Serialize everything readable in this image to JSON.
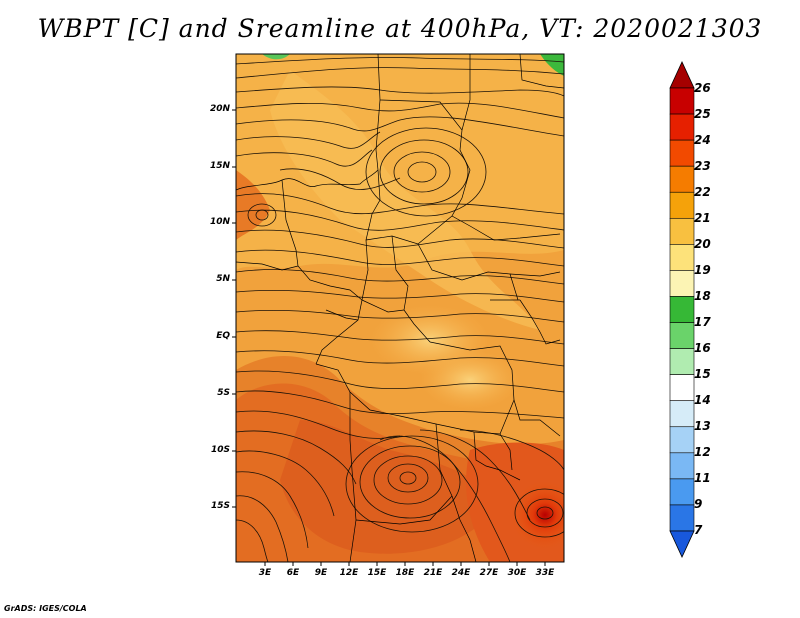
{
  "title": "WBPT [C] and Sreamline at 400hPa, VT: 2020021303",
  "credit": "GrADS: IGES/COLA",
  "map": {
    "latitude_labels": [
      "20N",
      "15N",
      "10N",
      "5N",
      "EQ",
      "5S",
      "10S",
      "15S"
    ],
    "longitude_labels": [
      "3E",
      "6E",
      "9E",
      "12E",
      "15E",
      "18E",
      "21E",
      "24E",
      "27E",
      "30E",
      "33E"
    ]
  },
  "colorbar": {
    "levels": [
      "26",
      "25",
      "24",
      "23",
      "22",
      "21",
      "20",
      "19",
      "18",
      "17",
      "16",
      "15",
      "14",
      "13",
      "12",
      "11",
      "9",
      "7"
    ],
    "colors": [
      "#a50000",
      "#c80000",
      "#e62000",
      "#f24a00",
      "#f57c00",
      "#f5a20a",
      "#f8c040",
      "#fde27a",
      "#fcf4b4",
      "#36b836",
      "#6ad36a",
      "#b0ecb0",
      "#ffffff",
      "#d6ecf8",
      "#a6d2f6",
      "#7ab8f4",
      "#4a9af0",
      "#2a76e6",
      "#1858dc"
    ]
  }
}
